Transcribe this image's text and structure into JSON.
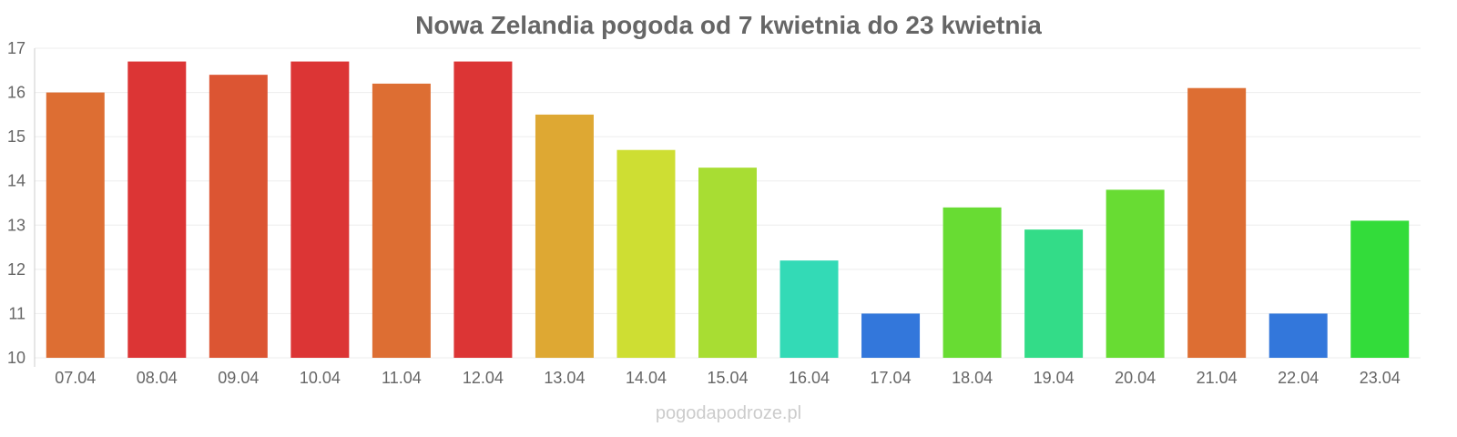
{
  "chart_data": {
    "type": "bar",
    "title": "Nowa Zelandia pogoda od 7 kwietnia do 23 kwietnia",
    "xlabel": "",
    "ylabel": "",
    "ylim": [
      10,
      17
    ],
    "yticks": [
      10,
      11,
      12,
      13,
      14,
      15,
      16,
      17
    ],
    "grid": true,
    "categories": [
      "07.04",
      "08.04",
      "09.04",
      "10.04",
      "11.04",
      "12.04",
      "13.04",
      "14.04",
      "15.04",
      "16.04",
      "17.04",
      "18.04",
      "19.04",
      "20.04",
      "21.04",
      "22.04",
      "23.04"
    ],
    "values": [
      16.0,
      16.7,
      16.4,
      16.7,
      16.2,
      16.7,
      15.5,
      14.7,
      14.3,
      12.2,
      11.0,
      13.4,
      12.9,
      13.8,
      16.1,
      11.0,
      13.1
    ],
    "colors": [
      "#dd6e33",
      "#dc3535",
      "#dc5533",
      "#dc3535",
      "#dd6e33",
      "#dc3535",
      "#dea833",
      "#cede33",
      "#a8dd33",
      "#33dab6",
      "#3377db",
      "#68dc33",
      "#33dc88",
      "#68dc33",
      "#dd6e33",
      "#3377db",
      "#33dc3a"
    ]
  },
  "watermark": "pogodapodroze.pl"
}
